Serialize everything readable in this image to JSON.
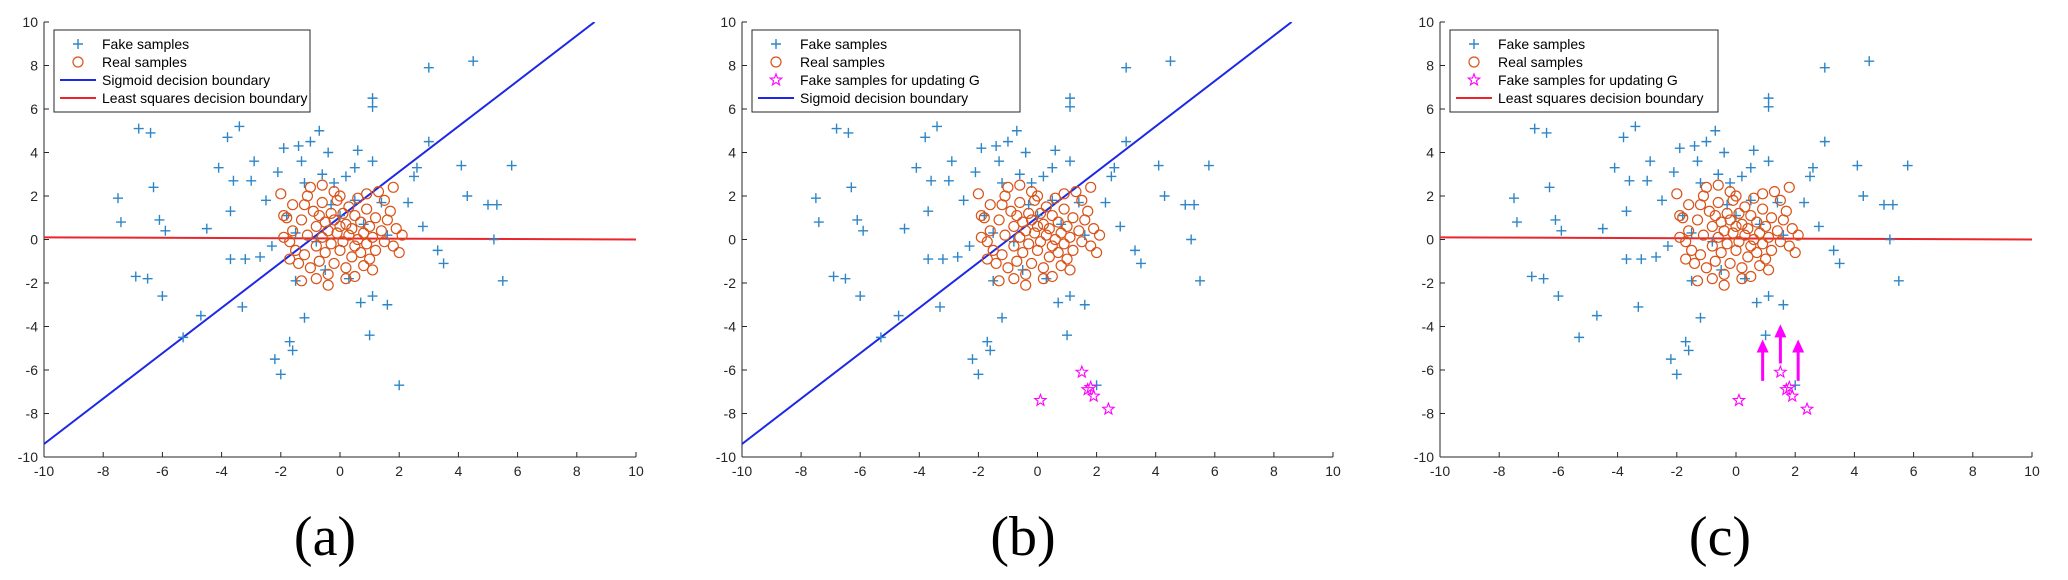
{
  "figure": {
    "panels": [
      {
        "caption": "(a)"
      },
      {
        "caption": "(b)"
      },
      {
        "caption": "(c)"
      }
    ]
  },
  "colors": {
    "fake": "#2e86c8",
    "real": "#d95319",
    "fake_update": "#ff00ff",
    "sigmoid": "#1d28e6",
    "least_squares": "#e8262b",
    "arrow": "#ff00ff"
  },
  "chart_data": [
    {
      "type": "scatter",
      "panel": "a",
      "xlim": [
        -10,
        10
      ],
      "ylim": [
        -10,
        10
      ],
      "xticks": [
        -10,
        -8,
        -6,
        -4,
        -2,
        0,
        2,
        4,
        6,
        8,
        10
      ],
      "yticks": [
        -10,
        -8,
        -6,
        -4,
        -2,
        0,
        2,
        4,
        6,
        8,
        10
      ],
      "legend_position": "top-left",
      "legend": [
        "Fake samples",
        "Real samples",
        "Sigmoid decision boundary",
        "Least squares decision boundary"
      ],
      "series": [
        {
          "name": "Fake samples",
          "marker": "plus",
          "color_key": "fake",
          "set": "fake"
        },
        {
          "name": "Real samples",
          "marker": "circle",
          "color_key": "real",
          "set": "real"
        },
        {
          "name": "Sigmoid decision boundary",
          "kind": "line",
          "color_key": "sigmoid",
          "points": [
            [
              -10,
              -9.4
            ],
            [
              8.6,
              10
            ]
          ]
        },
        {
          "name": "Least squares decision boundary",
          "kind": "line",
          "color_key": "least_squares",
          "points": [
            [
              -10,
              0.1
            ],
            [
              10,
              0.0
            ]
          ]
        }
      ]
    },
    {
      "type": "scatter",
      "panel": "b",
      "xlim": [
        -10,
        10
      ],
      "ylim": [
        -10,
        10
      ],
      "xticks": [
        -10,
        -8,
        -6,
        -4,
        -2,
        0,
        2,
        4,
        6,
        8,
        10
      ],
      "yticks": [
        -10,
        -8,
        -6,
        -4,
        -2,
        0,
        2,
        4,
        6,
        8,
        10
      ],
      "legend_position": "top-left",
      "legend": [
        "Fake samples",
        "Real samples",
        "Fake samples for updating G",
        "Sigmoid decision boundary"
      ],
      "series": [
        {
          "name": "Fake samples",
          "marker": "plus",
          "color_key": "fake",
          "set": "fake"
        },
        {
          "name": "Real samples",
          "marker": "circle",
          "color_key": "real",
          "set": "real"
        },
        {
          "name": "Fake samples for updating G",
          "marker": "star",
          "color_key": "fake_update",
          "set": "update"
        },
        {
          "name": "Sigmoid decision boundary",
          "kind": "line",
          "color_key": "sigmoid",
          "points": [
            [
              -10,
              -9.4
            ],
            [
              8.6,
              10
            ]
          ]
        }
      ]
    },
    {
      "type": "scatter",
      "panel": "c",
      "xlim": [
        -10,
        10
      ],
      "ylim": [
        -10,
        10
      ],
      "xticks": [
        -10,
        -8,
        -6,
        -4,
        -2,
        0,
        2,
        4,
        6,
        8,
        10
      ],
      "yticks": [
        -10,
        -8,
        -6,
        -4,
        -2,
        0,
        2,
        4,
        6,
        8,
        10
      ],
      "legend_position": "top-left",
      "legend": [
        "Fake samples",
        "Real samples",
        "Fake samples for updating G",
        "Least squares decision boundary"
      ],
      "series": [
        {
          "name": "Fake samples",
          "marker": "plus",
          "color_key": "fake",
          "set": "fake"
        },
        {
          "name": "Real samples",
          "marker": "circle",
          "color_key": "real",
          "set": "real"
        },
        {
          "name": "Fake samples for updating G",
          "marker": "star",
          "color_key": "fake_update",
          "set": "update"
        },
        {
          "name": "Least squares decision boundary",
          "kind": "line",
          "color_key": "least_squares",
          "points": [
            [
              -10,
              0.1
            ],
            [
              10,
              0.0
            ]
          ]
        }
      ],
      "arrows": [
        {
          "from": [
            0.9,
            -6.5
          ],
          "to": [
            0.9,
            -4.6
          ]
        },
        {
          "from": [
            1.5,
            -5.7
          ],
          "to": [
            1.5,
            -3.9
          ]
        },
        {
          "from": [
            2.1,
            -6.5
          ],
          "to": [
            2.1,
            -4.6
          ]
        }
      ]
    }
  ],
  "point_sets": {
    "fake": [
      [
        -7.5,
        1.9
      ],
      [
        -7.4,
        0.8
      ],
      [
        -6.8,
        5.1
      ],
      [
        -6.9,
        -1.7
      ],
      [
        -6.5,
        -1.8
      ],
      [
        -6.4,
        4.9
      ],
      [
        -6.3,
        2.4
      ],
      [
        -6.1,
        0.9
      ],
      [
        -5.9,
        0.4
      ],
      [
        -6.0,
        -2.6
      ],
      [
        -5.3,
        -4.5
      ],
      [
        -4.7,
        -3.5
      ],
      [
        -4.5,
        0.5
      ],
      [
        -4.1,
        3.3
      ],
      [
        -3.8,
        4.7
      ],
      [
        -3.7,
        1.3
      ],
      [
        -3.7,
        -0.9
      ],
      [
        -3.6,
        2.7
      ],
      [
        -3.4,
        5.2
      ],
      [
        -3.3,
        -3.1
      ],
      [
        -3.2,
        -0.9
      ],
      [
        -3.0,
        2.7
      ],
      [
        -2.9,
        3.6
      ],
      [
        -2.7,
        -0.8
      ],
      [
        -2.5,
        1.8
      ],
      [
        -2.3,
        -0.3
      ],
      [
        -2.2,
        -5.5
      ],
      [
        -2.0,
        -6.2
      ],
      [
        -1.9,
        4.2
      ],
      [
        -1.8,
        1.1
      ],
      [
        -1.7,
        -4.7
      ],
      [
        -1.6,
        -5.1
      ],
      [
        -1.5,
        0.3
      ],
      [
        -1.4,
        4.3
      ],
      [
        -1.3,
        3.6
      ],
      [
        -1.2,
        -3.6
      ],
      [
        -1.2,
        2.6
      ],
      [
        -1.0,
        4.5
      ],
      [
        -0.8,
        -0.1
      ],
      [
        -0.7,
        5.0
      ],
      [
        -0.6,
        3.0
      ],
      [
        -0.5,
        -1.4
      ],
      [
        -0.4,
        4.0
      ],
      [
        -0.2,
        2.6
      ],
      [
        0.0,
        1.1
      ],
      [
        0.2,
        2.9
      ],
      [
        0.3,
        -1.8
      ],
      [
        0.5,
        3.3
      ],
      [
        0.6,
        4.1
      ],
      [
        0.7,
        -2.9
      ],
      [
        0.8,
        0.7
      ],
      [
        1.0,
        -4.4
      ],
      [
        1.1,
        -2.6
      ],
      [
        1.1,
        3.6
      ],
      [
        1.4,
        1.7
      ],
      [
        1.1,
        6.5
      ],
      [
        1.1,
        6.1
      ],
      [
        1.6,
        -3.0
      ],
      [
        1.6,
        0.2
      ],
      [
        2.0,
        -6.7
      ],
      [
        2.3,
        1.7
      ],
      [
        2.5,
        2.9
      ],
      [
        2.6,
        3.3
      ],
      [
        2.8,
        0.6
      ],
      [
        3.0,
        4.5
      ],
      [
        3.0,
        7.9
      ],
      [
        3.3,
        -0.5
      ],
      [
        3.5,
        -1.1
      ],
      [
        4.1,
        3.4
      ],
      [
        4.3,
        2.0
      ],
      [
        4.5,
        8.2
      ],
      [
        5.0,
        1.6
      ],
      [
        5.3,
        1.6
      ],
      [
        5.2,
        0.0
      ],
      [
        5.5,
        -1.9
      ],
      [
        5.8,
        3.4
      ],
      [
        -1.5,
        -1.9
      ],
      [
        -0.3,
        1.6
      ],
      [
        0.5,
        1.8
      ],
      [
        -2.1,
        3.1
      ]
    ],
    "real": [
      [
        -2.0,
        2.1
      ],
      [
        -1.9,
        1.1
      ],
      [
        -1.8,
        1.0
      ],
      [
        -1.7,
        -0.1
      ],
      [
        -1.6,
        0.4
      ],
      [
        -1.5,
        -0.5
      ],
      [
        -1.4,
        -1.1
      ],
      [
        -1.3,
        0.9
      ],
      [
        -1.2,
        1.6
      ],
      [
        -1.2,
        -0.7
      ],
      [
        -1.1,
        0.2
      ],
      [
        -1.0,
        2.4
      ],
      [
        -1.0,
        -1.3
      ],
      [
        -0.9,
        1.3
      ],
      [
        -0.8,
        0.6
      ],
      [
        -0.8,
        -0.3
      ],
      [
        -0.7,
        1.1
      ],
      [
        -0.7,
        -1.0
      ],
      [
        -0.6,
        0.1
      ],
      [
        -0.6,
        1.7
      ],
      [
        -0.5,
        -0.6
      ],
      [
        -0.5,
        0.8
      ],
      [
        -0.4,
        0.4
      ],
      [
        -0.4,
        -1.6
      ],
      [
        -0.3,
        1.2
      ],
      [
        -0.3,
        -0.2
      ],
      [
        -0.2,
        0.9
      ],
      [
        -0.2,
        -1.1
      ],
      [
        -0.1,
        0.3
      ],
      [
        -0.1,
        1.8
      ],
      [
        0.0,
        -0.5
      ],
      [
        0.0,
        0.6
      ],
      [
        0.1,
        1.2
      ],
      [
        0.1,
        -0.1
      ],
      [
        0.2,
        -1.3
      ],
      [
        0.2,
        0.7
      ],
      [
        0.3,
        0.2
      ],
      [
        0.3,
        1.5
      ],
      [
        0.4,
        -0.8
      ],
      [
        0.4,
        0.5
      ],
      [
        0.5,
        1.1
      ],
      [
        0.5,
        -0.3
      ],
      [
        0.6,
        0.0
      ],
      [
        0.6,
        1.9
      ],
      [
        0.7,
        -0.6
      ],
      [
        0.7,
        0.8
      ],
      [
        0.8,
        0.3
      ],
      [
        0.8,
        -1.2
      ],
      [
        0.9,
        1.4
      ],
      [
        0.9,
        -0.2
      ],
      [
        1.0,
        0.6
      ],
      [
        1.0,
        -0.9
      ],
      [
        1.1,
        0.1
      ],
      [
        1.2,
        1.0
      ],
      [
        1.2,
        -0.5
      ],
      [
        1.3,
        2.2
      ],
      [
        1.4,
        0.4
      ],
      [
        1.5,
        -0.1
      ],
      [
        1.6,
        0.9
      ],
      [
        1.7,
        1.3
      ],
      [
        1.8,
        -0.3
      ],
      [
        1.9,
        0.5
      ],
      [
        2.0,
        -0.6
      ],
      [
        2.1,
        0.2
      ],
      [
        -1.1,
        2.0
      ],
      [
        -0.2,
        2.2
      ],
      [
        0.2,
        -1.8
      ],
      [
        -0.8,
        -1.8
      ],
      [
        -1.3,
        -1.9
      ],
      [
        -0.4,
        -2.1
      ],
      [
        0.5,
        -1.7
      ],
      [
        1.1,
        -1.4
      ],
      [
        1.5,
        1.8
      ],
      [
        -1.9,
        0.1
      ],
      [
        -1.6,
        1.6
      ],
      [
        0.0,
        2.0
      ],
      [
        1.8,
        2.4
      ],
      [
        -0.6,
        2.5
      ],
      [
        0.9,
        2.1
      ],
      [
        -1.7,
        -0.9
      ]
    ],
    "update": [
      [
        0.1,
        -7.4
      ],
      [
        1.5,
        -6.1
      ],
      [
        1.7,
        -6.9
      ],
      [
        1.9,
        -7.2
      ],
      [
        2.4,
        -7.8
      ],
      [
        1.8,
        -6.8
      ]
    ]
  }
}
